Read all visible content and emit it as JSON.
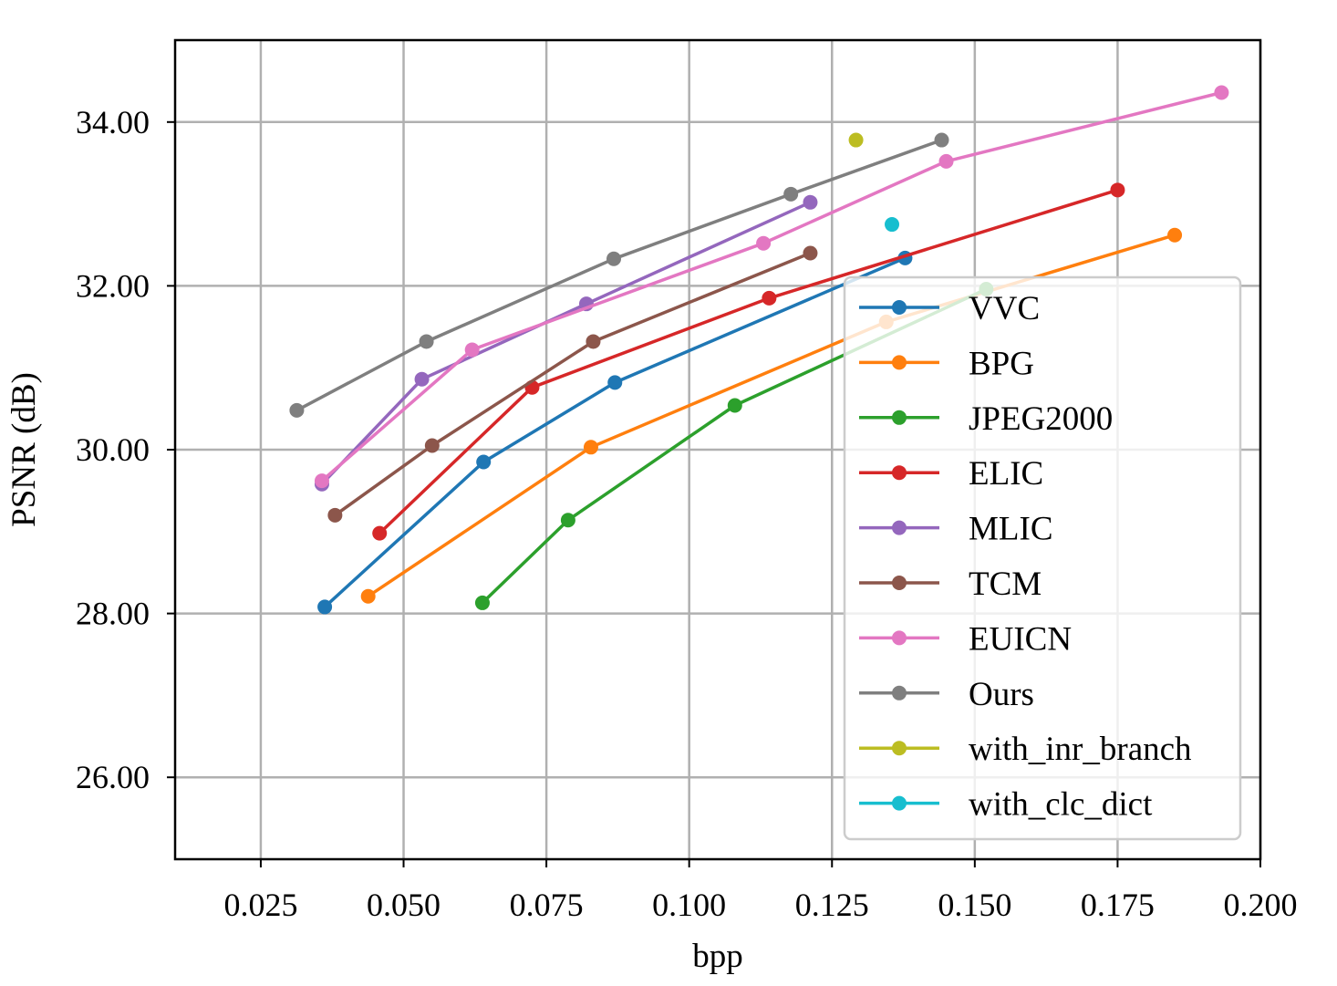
{
  "chart_data": {
    "type": "line",
    "title": "",
    "xlabel": "bpp",
    "ylabel": "PSNR (dB)",
    "xlim": [
      0.01,
      0.2
    ],
    "ylim": [
      25.0,
      35.0
    ],
    "xticks": [
      0.025,
      0.05,
      0.075,
      0.1,
      0.125,
      0.15,
      0.175,
      0.2
    ],
    "xtick_labels": [
      "0.025",
      "0.050",
      "0.075",
      "0.100",
      "0.125",
      "0.150",
      "0.175",
      "0.200"
    ],
    "yticks": [
      26,
      28,
      30,
      32,
      34
    ],
    "ytick_labels": [
      "26.00",
      "28.00",
      "30.00",
      "32.00",
      "34.00"
    ],
    "grid": true,
    "legend_position": "lower-right",
    "series": [
      {
        "name": "VVC",
        "color": "#1f77b4",
        "x": [
          0.0362,
          0.064,
          0.087,
          0.1378
        ],
        "y": [
          28.08,
          29.85,
          30.82,
          32.34
        ]
      },
      {
        "name": "BPG",
        "color": "#ff7f0e",
        "x": [
          0.0438,
          0.0828,
          0.1345,
          0.185
        ],
        "y": [
          28.21,
          30.03,
          31.56,
          32.62
        ]
      },
      {
        "name": "JPEG2000",
        "color": "#2ca02c",
        "x": [
          0.0638,
          0.0788,
          0.108,
          0.152
        ],
        "y": [
          28.13,
          29.14,
          30.54,
          31.96
        ]
      },
      {
        "name": "ELIC",
        "color": "#d62728",
        "x": [
          0.0458,
          0.0725,
          0.114,
          0.175
        ],
        "y": [
          28.98,
          30.76,
          31.85,
          33.17
        ]
      },
      {
        "name": "MLIC",
        "color": "#9467bd",
        "x": [
          0.0357,
          0.0532,
          0.082,
          0.1212
        ],
        "y": [
          29.58,
          30.86,
          31.78,
          33.02
        ]
      },
      {
        "name": "TCM",
        "color": "#8c564b",
        "x": [
          0.038,
          0.055,
          0.0832,
          0.1212
        ],
        "y": [
          29.2,
          30.05,
          31.32,
          32.4
        ]
      },
      {
        "name": "EUICN",
        "color": "#e377c2",
        "x": [
          0.0357,
          0.062,
          0.113,
          0.145,
          0.1932
        ],
        "y": [
          29.62,
          31.22,
          32.52,
          33.52,
          34.36
        ]
      },
      {
        "name": "Ours",
        "color": "#7f7f7f",
        "x": [
          0.0313,
          0.054,
          0.0868,
          0.1178,
          0.1442
        ],
        "y": [
          30.48,
          31.32,
          32.33,
          33.12,
          33.78
        ]
      },
      {
        "name": "with_inr_branch",
        "color": "#bcbd22",
        "x": [
          0.1292
        ],
        "y": [
          33.78
        ]
      },
      {
        "name": "with_clc_dict",
        "color": "#17becf",
        "x": [
          0.1355
        ],
        "y": [
          32.75
        ]
      }
    ]
  }
}
